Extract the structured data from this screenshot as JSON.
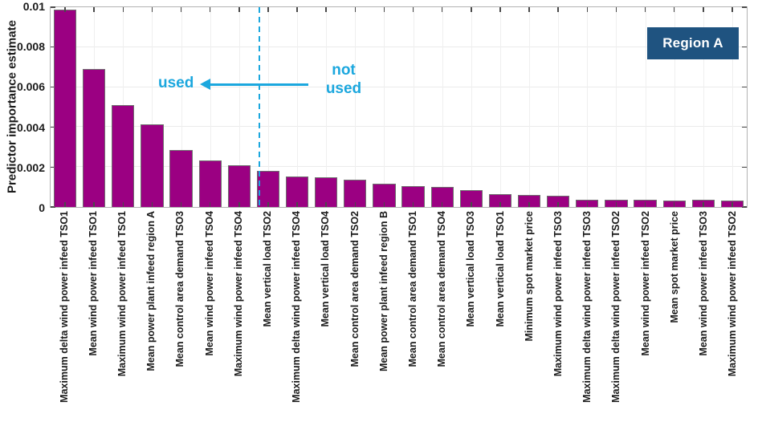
{
  "chart_data": {
    "type": "bar",
    "title": "",
    "ylabel": "Predictor importance estimate",
    "xlabel": "",
    "ylim": [
      0,
      0.01
    ],
    "grid": true,
    "yticks": [
      {
        "value": 0,
        "label": "0"
      },
      {
        "value": 0.002,
        "label": "0.002"
      },
      {
        "value": 0.004,
        "label": "0.004"
      },
      {
        "value": 0.006,
        "label": "0.006"
      },
      {
        "value": 0.008,
        "label": "0.008"
      },
      {
        "value": 0.01,
        "label": "0.01"
      }
    ],
    "categories": [
      "Maximum delta wind power infeed TSO1",
      "Mean wind power infeed TSO1",
      "Maximum wind power infeed TSO1",
      "Mean power plant infeed region A",
      "Mean control area demand TSO3",
      "Mean wind power infeed TSO4",
      "Maximum wind power infeed TSO4",
      "Mean vertical load TSO2",
      "Maximum delta wind power infeed TSO4",
      "Mean vertical load TSO4",
      "Mean control area demand TSO2",
      "Mean power plant infeed region B",
      "Mean control area demand TSO1",
      "Mean control area demand TSO4",
      "Mean vertical load TSO3",
      "Mean vertical load TSO1",
      "Minimum spot market price",
      "Maximum wind power infeed TSO3",
      "Maximum delta wind power infeed TSO3",
      "Maximum delta wind power infeed TSO2",
      "Mean wind power infeed TSO2",
      "Mean spot market price",
      "Mean wind power infeed TSO3",
      "Maximum wind power infeed TSO2"
    ],
    "values": [
      0.0099,
      0.0069,
      0.0051,
      0.00415,
      0.00285,
      0.00235,
      0.00207,
      0.0018,
      0.00152,
      0.00147,
      0.00136,
      0.00117,
      0.00106,
      0.00102,
      0.00086,
      0.00066,
      0.00061,
      0.00055,
      0.00037,
      0.00036,
      0.00036,
      0.00034,
      0.00035,
      0.00033
    ],
    "bar_color": "#9B0082",
    "bar_edge_color": "#6F6F6F",
    "divider": {
      "after_index": 7,
      "style": "dashed",
      "color": "#1BA7DE"
    },
    "annotations": {
      "used": "used",
      "not_used": "not\nused",
      "color": "#1BA7DE"
    },
    "legend_badge": {
      "label": "Region A",
      "bg": "#1F5380",
      "text_color": "#FFFFFF"
    },
    "legend_position": "top-right"
  }
}
